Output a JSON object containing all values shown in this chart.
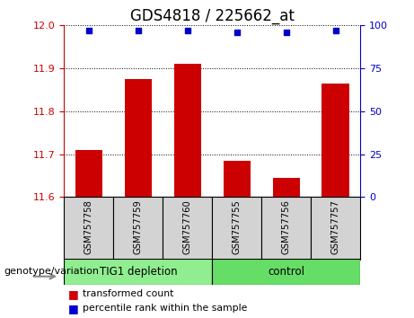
{
  "title": "GDS4818 / 225662_at",
  "categories": [
    "GSM757758",
    "GSM757759",
    "GSM757760",
    "GSM757755",
    "GSM757756",
    "GSM757757"
  ],
  "bar_values": [
    11.71,
    11.875,
    11.91,
    11.685,
    11.645,
    11.865
  ],
  "percentile_values": [
    97,
    97,
    97,
    96,
    96,
    97
  ],
  "ylim_left": [
    11.6,
    12.0
  ],
  "ylim_right": [
    0,
    100
  ],
  "yticks_left": [
    11.6,
    11.7,
    11.8,
    11.9,
    12.0
  ],
  "yticks_right": [
    0,
    25,
    50,
    75,
    100
  ],
  "bar_color": "#cc0000",
  "dot_color": "#0000cc",
  "bar_width": 0.55,
  "group1_label": "TIG1 depletion",
  "group2_label": "control",
  "group1_color": "#90ee90",
  "group2_color": "#66dd66",
  "genotype_label": "genotype/variation",
  "legend_red_label": "transformed count",
  "legend_blue_label": "percentile rank within the sample",
  "fig_bg_color": "#ffffff",
  "plot_bg_color": "#ffffff",
  "sample_box_color": "#d3d3d3",
  "right_axis_color": "#0000cc",
  "left_axis_color": "#cc0000",
  "title_fontsize": 12,
  "tick_fontsize": 8,
  "label_fontsize": 8,
  "group_n1": 3,
  "group_n2": 3
}
